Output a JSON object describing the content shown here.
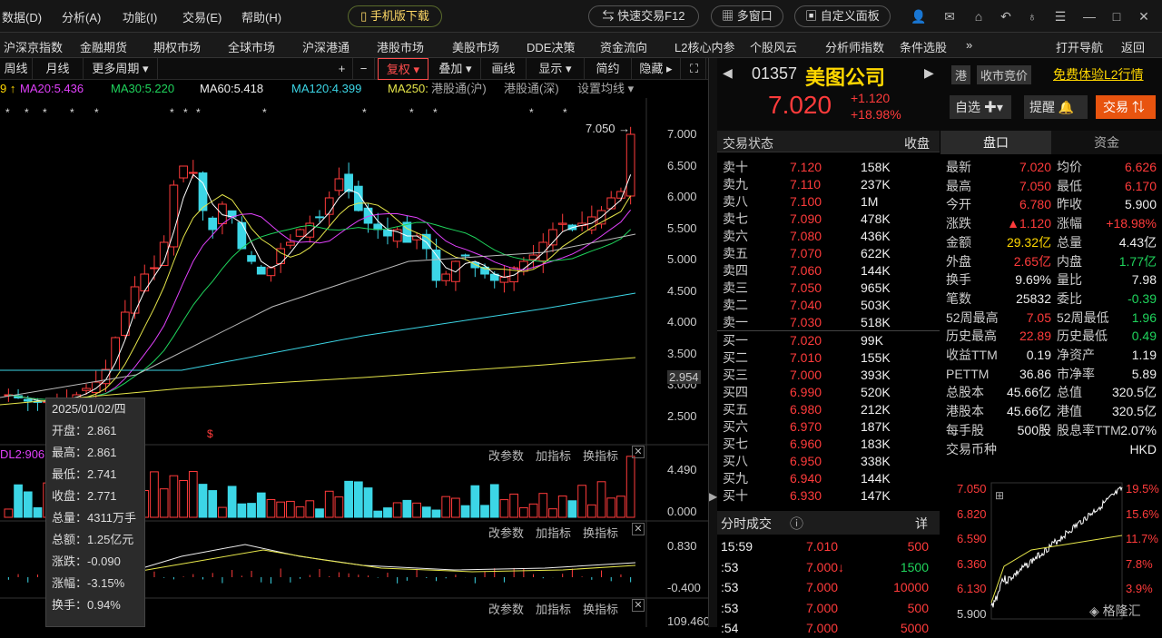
{
  "menu": {
    "items": [
      "数据(D)",
      "分析(A)",
      "功能(I)",
      "交易(E)",
      "帮助(H)"
    ],
    "mobile": "手机版下载",
    "quick_trade": "快速交易F12",
    "multi_window": "多窗口",
    "custom_panel": "自定义面板"
  },
  "nav": {
    "items": [
      "沪深京指数",
      "金融期货",
      "期权市场",
      "全球市场",
      "沪深港通",
      "港股市场",
      "美股市场",
      "DDE决策",
      "资金流向",
      "L2核心内参",
      "个股风云",
      "分析师指数",
      "条件选股"
    ],
    "more": "»",
    "open_nav": "打开导航",
    "back": "返回"
  },
  "chartbar": {
    "weekly": "周线",
    "monthly": "月线",
    "more_period": "更多周期",
    "adjust": "复权",
    "overlay": "叠加",
    "draw": "画线",
    "show": "显示",
    "simple": "简约",
    "hide": "隐藏"
  },
  "ma": {
    "ma20": "MA20:5.436",
    "ma30": "MA30:5.220",
    "ma60": "MA60:5.418",
    "ma120": "MA120:4.399",
    "ma250": "MA250:",
    "hk_sh": "港股通(沪)",
    "hk_sz": "港股通(深)",
    "set_ma": "设置均线"
  },
  "y_axis": [
    "7.000",
    "6.500",
    "6.000",
    "5.500",
    "5.000",
    "4.500",
    "4.000",
    "3.500",
    "3.000",
    "2.500"
  ],
  "current_label": "2.954",
  "high_label": "7.050",
  "vol": {
    "label": "DL2:906",
    "top": "4.490",
    "bottom": "0.000"
  },
  "macd": {
    "top": "0.830",
    "bottom": "-0.400"
  },
  "kdj": {
    "bottom": "109.460"
  },
  "subbar": {
    "change_param": "改参数",
    "add_indicator": "加指标",
    "switch_indicator": "换指标"
  },
  "tooltip": {
    "date": "2025/01/02/四",
    "open": "开盘：2.861",
    "high": "最高：2.861",
    "low": "最低：2.741",
    "close": "收盘：2.771",
    "volume": "总量：4311万手",
    "amount": "总额：1.25亿元",
    "change": "涨跌：-0.090",
    "pct": "涨幅：-3.15%",
    "turnover": "换手：0.94%"
  },
  "stock": {
    "code": "01357",
    "name": "美图公司",
    "price": "7.020",
    "change": "+1.120",
    "pct": "+18.98%",
    "mkt": "港",
    "auction": "收市竞价",
    "l2": "免费体验L2行情",
    "watch": "自选",
    "alert": "提醒",
    "trade": "交易"
  },
  "book": {
    "status": "交易状态",
    "close": "收盘",
    "asks": [
      {
        "l": "卖十",
        "p": "7.120",
        "v": "158K"
      },
      {
        "l": "卖九",
        "p": "7.110",
        "v": "237K"
      },
      {
        "l": "卖八",
        "p": "7.100",
        "v": "1M"
      },
      {
        "l": "卖七",
        "p": "7.090",
        "v": "478K"
      },
      {
        "l": "卖六",
        "p": "7.080",
        "v": "436K"
      },
      {
        "l": "卖五",
        "p": "7.070",
        "v": "622K"
      },
      {
        "l": "卖四",
        "p": "7.060",
        "v": "144K"
      },
      {
        "l": "卖三",
        "p": "7.050",
        "v": "965K"
      },
      {
        "l": "卖二",
        "p": "7.040",
        "v": "503K"
      },
      {
        "l": "卖一",
        "p": "7.030",
        "v": "518K"
      }
    ],
    "bids": [
      {
        "l": "买一",
        "p": "7.020",
        "v": "99K"
      },
      {
        "l": "买二",
        "p": "7.010",
        "v": "155K"
      },
      {
        "l": "买三",
        "p": "7.000",
        "v": "393K"
      },
      {
        "l": "买四",
        "p": "6.990",
        "v": "520K"
      },
      {
        "l": "买五",
        "p": "6.980",
        "v": "212K"
      },
      {
        "l": "买六",
        "p": "6.970",
        "v": "187K"
      },
      {
        "l": "买七",
        "p": "6.960",
        "v": "183K"
      },
      {
        "l": "买八",
        "p": "6.950",
        "v": "338K"
      },
      {
        "l": "买九",
        "p": "6.940",
        "v": "144K"
      },
      {
        "l": "买十",
        "p": "6.930",
        "v": "147K"
      }
    ]
  },
  "tabs": {
    "panel": "盘口",
    "funds": "资金"
  },
  "stats": [
    {
      "a": "最新",
      "av": "7.020",
      "ac": "red",
      "b": "均价",
      "bv": "6.626",
      "bc": "red"
    },
    {
      "a": "最高",
      "av": "7.050",
      "ac": "red",
      "b": "最低",
      "bv": "6.170",
      "bc": "red"
    },
    {
      "a": "今开",
      "av": "6.780",
      "ac": "red",
      "b": "昨收",
      "bv": "5.900",
      "bc": "white"
    },
    {
      "a": "涨跌",
      "av": "▲1.120",
      "ac": "red",
      "b": "涨幅",
      "bv": "+18.98%",
      "bc": "red"
    },
    {
      "a": "金额",
      "av": "29.32亿",
      "ac": "yellow",
      "b": "总量",
      "bv": "4.43亿",
      "bc": "white"
    },
    {
      "a": "外盘",
      "av": "2.65亿",
      "ac": "red",
      "b": "内盘",
      "bv": "1.77亿",
      "bc": "green"
    },
    {
      "a": "换手",
      "av": "9.69%",
      "ac": "white",
      "b": "量比",
      "bv": "7.98",
      "bc": "white"
    },
    {
      "a": "笔数",
      "av": "25832",
      "ac": "white",
      "b": "委比",
      "bv": "-0.39",
      "bc": "green"
    },
    {
      "a": "52周最高",
      "av": "7.05",
      "ac": "red",
      "b": "52周最低",
      "bv": "1.96",
      "bc": "green"
    },
    {
      "a": "历史最高",
      "av": "22.89",
      "ac": "red",
      "b": "历史最低",
      "bv": "0.49",
      "bc": "green"
    },
    {
      "a": "收益TTM",
      "av": "0.19",
      "ac": "white",
      "b": "净资产",
      "bv": "1.19",
      "bc": "white"
    },
    {
      "a": "PETTM",
      "av": "36.86",
      "ac": "white",
      "b": "市净率",
      "bv": "5.89",
      "bc": "white"
    },
    {
      "a": "总股本",
      "av": "45.66亿",
      "ac": "white",
      "b": "总值",
      "bv": "320.5亿",
      "bc": "white"
    },
    {
      "a": "港股本",
      "av": "45.66亿",
      "ac": "white",
      "b": "港值",
      "bv": "320.5亿",
      "bc": "white"
    },
    {
      "a": "每手股",
      "av": "500股",
      "ac": "white",
      "b": "股息率TTM",
      "bv": "2.07%",
      "bc": "white"
    },
    {
      "a": "交易币种",
      "av": "",
      "ac": "white",
      "b": "",
      "bv": "HKD",
      "bc": "white"
    }
  ],
  "trades": {
    "title": "分时成交",
    "detail": "详",
    "rows": [
      {
        "t": "15:59",
        "p": "7.010",
        "v": "500",
        "vc": "red"
      },
      {
        "t": ":53",
        "p": "7.000↓",
        "v": "1500",
        "vc": "green"
      },
      {
        "t": ":53",
        "p": "7.000",
        "v": "10000",
        "vc": "red"
      },
      {
        "t": ":53",
        "p": "7.000",
        "v": "500",
        "vc": "red"
      },
      {
        "t": ":54",
        "p": "7.000",
        "v": "5000",
        "vc": "red"
      }
    ]
  },
  "mini": {
    "left": [
      "7.050",
      "6.820",
      "6.590",
      "6.360",
      "6.130",
      "5.900"
    ],
    "right": [
      "19.5%",
      "15.6%",
      "11.7%",
      "7.8%",
      "3.9%",
      ""
    ]
  },
  "watermark": "格隆汇"
}
